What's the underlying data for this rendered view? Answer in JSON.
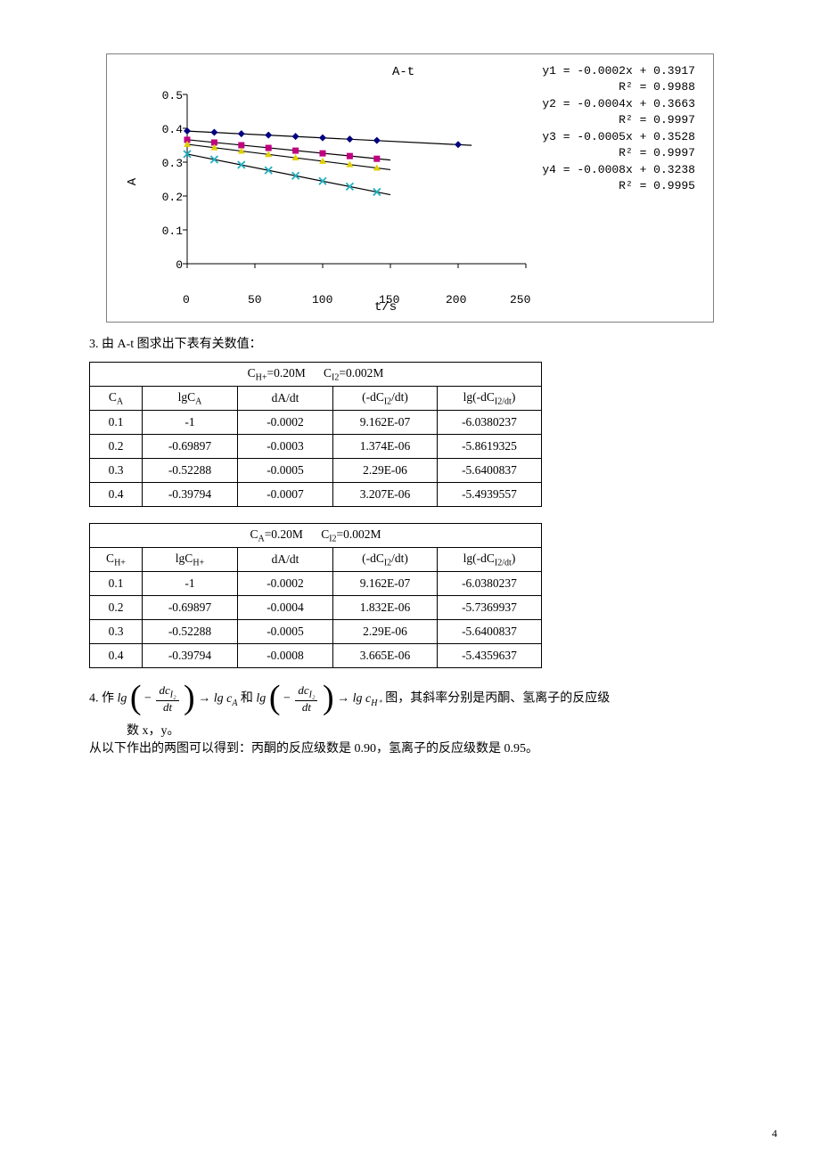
{
  "chart": {
    "type": "scatter-line",
    "title": "A-t",
    "xlabel": "t/s",
    "ylabel": "A",
    "xlim": [
      0,
      250
    ],
    "ylim": [
      0,
      0.5
    ],
    "xtick_step": 50,
    "ytick_step": 0.1,
    "xticks": [
      "0",
      "50",
      "100",
      "150",
      "200",
      "250"
    ],
    "yticks": [
      "0",
      "0.1",
      "0.2",
      "0.3",
      "0.4",
      "0.5"
    ],
    "background_color": "#ffffff",
    "axis_color": "#000000",
    "series": [
      {
        "label": "y1",
        "color": "#000080",
        "marker": "diamond",
        "slope": -0.0002,
        "intercept": 0.3917,
        "x": [
          0,
          20,
          40,
          60,
          80,
          100,
          120,
          140,
          200
        ],
        "y": [
          0.392,
          0.388,
          0.384,
          0.38,
          0.376,
          0.372,
          0.368,
          0.364,
          0.352
        ]
      },
      {
        "label": "y2",
        "color": "#c00080",
        "marker": "square",
        "slope": -0.0004,
        "intercept": 0.3663,
        "x": [
          0,
          20,
          40,
          60,
          80,
          100,
          120,
          140
        ],
        "y": [
          0.366,
          0.358,
          0.35,
          0.342,
          0.334,
          0.326,
          0.318,
          0.31
        ]
      },
      {
        "label": "y3",
        "color": "#e0d000",
        "marker": "triangle",
        "slope": -0.0005,
        "intercept": 0.3528,
        "x": [
          0,
          20,
          40,
          60,
          80,
          100,
          120,
          140
        ],
        "y": [
          0.353,
          0.343,
          0.333,
          0.323,
          0.313,
          0.303,
          0.293,
          0.283
        ]
      },
      {
        "label": "y4",
        "color": "#20b0c0",
        "marker": "x",
        "slope": -0.0008,
        "intercept": 0.3238,
        "x": [
          0,
          20,
          40,
          60,
          80,
          100,
          120,
          140
        ],
        "y": [
          0.324,
          0.308,
          0.292,
          0.276,
          0.26,
          0.244,
          0.228,
          0.212
        ]
      }
    ],
    "trend_color": "#000000",
    "trend_width": 1.2,
    "annotations": [
      {
        "eq": "y1 = -0.0002x + 0.3917",
        "r2": "R² = 0.9988"
      },
      {
        "eq": "y2 = -0.0004x + 0.3663",
        "r2": "R² = 0.9997"
      },
      {
        "eq": "y3 = -0.0005x + 0.3528",
        "r2": "R² = 0.9997"
      },
      {
        "eq": "y4 = -0.0008x + 0.3238",
        "r2": "R² = 0.9995"
      }
    ]
  },
  "section3_label": "3.  由 A-t 图求出下表有关数值：",
  "table1": {
    "header_span": "C_H+=0.20M      C_I2=0.002M",
    "header_span_sub1": "H+",
    "header_span_val1": "=0.20M",
    "header_span_sub2": "I2",
    "header_span_val2": "=0.002M",
    "col_labels": {
      "c": "C_A",
      "lg": "lgC_A",
      "da": "dA/dt",
      "dc": "(-dC_I2/dt)",
      "ldc": "lg(-dC_I2/dt)"
    },
    "col_sub_c": "A",
    "col_sub_lg": "A",
    "col_sub_dc": "I2",
    "col_sub_ldc": "I2/dt",
    "rows": [
      [
        "0.1",
        "-1",
        "-0.0002",
        "9.162E-07",
        "-6.0380237"
      ],
      [
        "0.2",
        "-0.69897",
        "-0.0003",
        "1.374E-06",
        "-5.8619325"
      ],
      [
        "0.3",
        "-0.52288",
        "-0.0005",
        "2.29E-06",
        "-5.6400837"
      ],
      [
        "0.4",
        "-0.39794",
        "-0.0007",
        "3.207E-06",
        "-5.4939557"
      ]
    ]
  },
  "table2": {
    "header_span_sub1": "A",
    "header_span_val1": "=0.20M",
    "header_span_sub2": "I2",
    "header_span_val2": "=0.002M",
    "col_labels": {
      "c": "C_H+",
      "lg": "lgC_H+",
      "da": "dA/dt",
      "dc": "(-dC_I2/dt)",
      "ldc": "lg(-dC_I2/dt)"
    },
    "col_sub_c": "H+",
    "col_sub_lg": "H+",
    "col_sub_dc": "I2",
    "col_sub_ldc": "I2/dt",
    "rows": [
      [
        "0.1",
        "-1",
        "-0.0002",
        "9.162E-07",
        "-6.0380237"
      ],
      [
        "0.2",
        "-0.69897",
        "-0.0004",
        "1.832E-06",
        "-5.7369937"
      ],
      [
        "0.3",
        "-0.52288",
        "-0.0005",
        "2.29E-06",
        "-5.6400837"
      ],
      [
        "0.4",
        "-0.39794",
        "-0.0008",
        "3.665E-06",
        "-5.4359637"
      ]
    ]
  },
  "section4": {
    "prefix": "4.  作",
    "lg": "lg",
    "minus": "−",
    "frac_num": "dc_I₂",
    "frac_den": "dt",
    "arrow": "→",
    "lgca": "lg c_A",
    "and": "和",
    "lgch": "lg c_H⁺",
    "suffix": "图，其斜率分别是丙酮、氢离子的反应级",
    "line2": "数 x，y。",
    "conclusion": "从以下作出的两图可以得到：丙酮的反应级数是 0.90，氢离子的反应级数是 0.95。"
  },
  "page_number": "4"
}
